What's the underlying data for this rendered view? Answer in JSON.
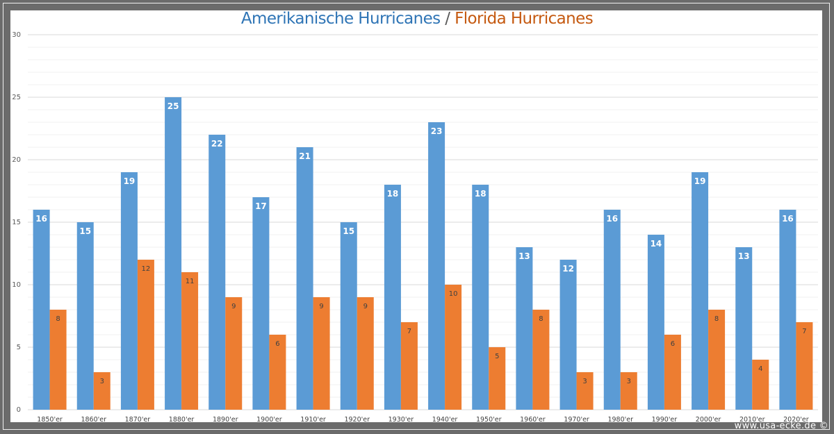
{
  "chart_data": {
    "type": "bar",
    "title": {
      "part1": "Amerikanische Hurricanes",
      "separator": " / ",
      "part2": "Florida Hurricanes"
    },
    "xlabel": "",
    "ylabel": "",
    "ylim": [
      0,
      30
    ],
    "yticks": [
      0,
      5,
      10,
      15,
      20,
      25,
      30
    ],
    "minor_grid_step": 1,
    "grid": true,
    "legend": "none",
    "categories": [
      "1850'er",
      "1860'er",
      "1870'er",
      "1880'er",
      "1890'er",
      "1900'er",
      "1910'er",
      "1920'er",
      "1930'er",
      "1940'er",
      "1950'er",
      "1960'er",
      "1970'er",
      "1980'er",
      "1990'er",
      "2000'er",
      "2010'er",
      "2020'er"
    ],
    "series": [
      {
        "name": "Amerikanische Hurricanes",
        "color": "#5b9bd5",
        "label_color": "#ffffff",
        "values": [
          16,
          15,
          19,
          25,
          22,
          17,
          21,
          15,
          18,
          23,
          18,
          13,
          12,
          16,
          14,
          19,
          13,
          16
        ]
      },
      {
        "name": "Florida Hurricanes",
        "color": "#ed7d31",
        "label_color": "#404040",
        "values": [
          8,
          3,
          12,
          11,
          9,
          6,
          9,
          9,
          7,
          10,
          5,
          8,
          3,
          3,
          6,
          8,
          4,
          7
        ]
      }
    ]
  },
  "watermark": "www.usa-ecke.de ©"
}
